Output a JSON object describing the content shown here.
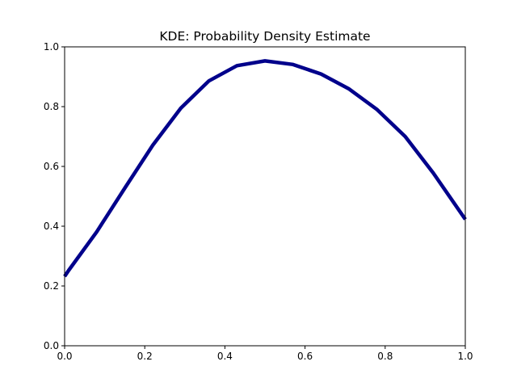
{
  "chart_data": {
    "type": "line",
    "title": "KDE: Probability Density Estimate",
    "xlabel": "",
    "ylabel": "",
    "xlim": [
      0.0,
      1.0
    ],
    "ylim": [
      0.0,
      1.0
    ],
    "xticks": [
      "0.0",
      "0.2",
      "0.4",
      "0.6",
      "0.8",
      "1.0"
    ],
    "yticks": [
      "0.0",
      "0.2",
      "0.4",
      "0.6",
      "0.8",
      "1.0"
    ],
    "grid": false,
    "series": [
      {
        "color": "#00008b",
        "x": [
          0.0,
          0.01,
          0.08,
          0.15,
          0.22,
          0.29,
          0.36,
          0.43,
          0.5,
          0.57,
          0.64,
          0.71,
          0.78,
          0.85,
          0.92,
          1.0
        ],
        "y": [
          0.232,
          0.252,
          0.381,
          0.527,
          0.671,
          0.795,
          0.886,
          0.937,
          0.953,
          0.941,
          0.909,
          0.859,
          0.79,
          0.7,
          0.578,
          0.423
        ]
      }
    ]
  }
}
